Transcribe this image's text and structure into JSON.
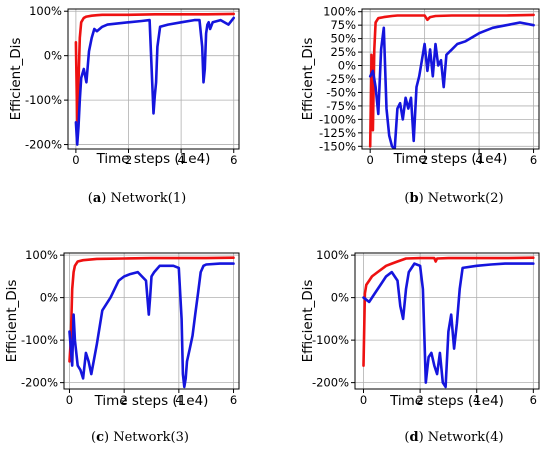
{
  "colors": {
    "red_series": "#ee1111",
    "blue_series": "#1515dd",
    "grid": "#b0b0b0"
  },
  "chart_data": [
    {
      "type": "line",
      "caption": {
        "letter": "a",
        "text": "Network(1)"
      },
      "xlabel": "Time steps (1e4)",
      "ylabel": "Efficient_Dis",
      "xlim": [
        -0.3,
        6.2
      ],
      "ylim": [
        -210,
        105
      ],
      "xticks": [
        0,
        2,
        4,
        6
      ],
      "yticks": [
        100,
        0,
        -100,
        -200
      ],
      "yticklabels": [
        "100%",
        "0%",
        "-100%",
        "-200%"
      ],
      "grid": true,
      "series": [
        {
          "color": "red",
          "x": [
            0,
            0.05,
            0.1,
            0.15,
            0.2,
            0.3,
            0.4,
            0.6,
            0.8,
            1,
            2,
            3,
            4,
            5,
            6
          ],
          "y": [
            30,
            -150,
            -60,
            40,
            75,
            85,
            88,
            90,
            91,
            92,
            92,
            93,
            93,
            93,
            94
          ]
        },
        {
          "color": "blue",
          "x": [
            0,
            0.05,
            0.1,
            0.15,
            0.2,
            0.3,
            0.4,
            0.5,
            0.6,
            0.7,
            0.8,
            1,
            1.2,
            1.5,
            2,
            2.5,
            2.8,
            2.9,
            2.95,
            3.0,
            3.05,
            3.1,
            3.2,
            3.5,
            4,
            4.5,
            4.7,
            4.8,
            4.85,
            4.9,
            4.95,
            5.0,
            5.05,
            5.1,
            5.2,
            5.5,
            5.8,
            6.0
          ],
          "y": [
            -150,
            -200,
            -160,
            -100,
            -50,
            -30,
            -60,
            10,
            40,
            60,
            55,
            65,
            70,
            72,
            75,
            78,
            80,
            -60,
            -130,
            -90,
            -60,
            20,
            65,
            70,
            75,
            80,
            80,
            20,
            -60,
            -30,
            50,
            70,
            75,
            60,
            75,
            80,
            70,
            85
          ]
        }
      ]
    },
    {
      "type": "line",
      "caption": {
        "letter": "b",
        "text": "Network(2)"
      },
      "xlabel": "Time steps (1e4)",
      "ylabel": "Efficient_Dis",
      "xlim": [
        -0.3,
        6.2
      ],
      "ylim": [
        -155,
        105
      ],
      "xticks": [
        0,
        2,
        4,
        6
      ],
      "yticks": [
        100,
        75,
        50,
        25,
        0,
        -25,
        -50,
        -75,
        -100,
        -125,
        -150
      ],
      "yticklabels": [
        "100%",
        "75%",
        "50%",
        "25%",
        "0%",
        "-25%",
        "-50%",
        "-75%",
        "-100%",
        "-125%",
        "-150%"
      ],
      "grid": true,
      "series": [
        {
          "color": "red",
          "x": [
            0,
            0.05,
            0.1,
            0.15,
            0.2,
            0.3,
            0.5,
            0.8,
            1,
            1.5,
            2,
            2.1,
            2.2,
            2.4,
            3,
            4,
            5,
            6
          ],
          "y": [
            -150,
            20,
            -120,
            30,
            80,
            88,
            90,
            92,
            93,
            93,
            93,
            85,
            90,
            92,
            93,
            93,
            93,
            94
          ]
        },
        {
          "color": "blue",
          "x": [
            0,
            0.1,
            0.2,
            0.3,
            0.4,
            0.5,
            0.6,
            0.7,
            0.8,
            0.9,
            1.0,
            1.1,
            1.2,
            1.3,
            1.4,
            1.5,
            1.6,
            1.7,
            1.8,
            1.9,
            2.0,
            2.1,
            2.2,
            2.3,
            2.4,
            2.5,
            2.6,
            2.7,
            2.8,
            3.0,
            3.2,
            3.5,
            4,
            4.5,
            5,
            5.5,
            6
          ],
          "y": [
            -20,
            -10,
            -40,
            -90,
            30,
            70,
            -80,
            -130,
            -150,
            -155,
            -80,
            -70,
            -100,
            -60,
            -80,
            -60,
            -140,
            -40,
            -20,
            10,
            40,
            -10,
            30,
            -20,
            40,
            0,
            10,
            -40,
            20,
            30,
            40,
            45,
            60,
            70,
            75,
            80,
            75
          ]
        }
      ]
    },
    {
      "type": "line",
      "caption": {
        "letter": "c",
        "text": "Network(3)"
      },
      "xlabel": "Time steps (1e4)",
      "ylabel": "Efficient_Dis",
      "xlim": [
        -0.2,
        6.2
      ],
      "ylim": [
        -215,
        105
      ],
      "xticks": [
        0,
        2,
        4,
        6
      ],
      "yticks": [
        100,
        0,
        -100,
        -200
      ],
      "yticklabels": [
        "100%",
        "0%",
        "-100%",
        "-200%"
      ],
      "grid": true,
      "series": [
        {
          "color": "red",
          "x": [
            0,
            0.05,
            0.1,
            0.15,
            0.2,
            0.3,
            0.5,
            0.8,
            1,
            2,
            3,
            4,
            5,
            6
          ],
          "y": [
            -150,
            -100,
            20,
            60,
            75,
            85,
            88,
            90,
            91,
            92,
            93,
            93,
            93,
            94
          ]
        },
        {
          "color": "blue",
          "x": [
            0,
            0.1,
            0.15,
            0.2,
            0.3,
            0.4,
            0.5,
            0.6,
            0.7,
            0.8,
            1.0,
            1.2,
            1.5,
            1.8,
            2.0,
            2.2,
            2.5,
            2.8,
            2.9,
            2.95,
            3.0,
            3.1,
            3.3,
            3.5,
            3.8,
            4.0,
            4.1,
            4.15,
            4.2,
            4.25,
            4.3,
            4.4,
            4.5,
            4.6,
            4.7,
            4.8,
            4.9,
            5.0,
            5.5,
            6.0
          ],
          "y": [
            -80,
            -160,
            -40,
            -100,
            -160,
            -170,
            -190,
            -130,
            -150,
            -180,
            -110,
            -30,
            0,
            40,
            50,
            55,
            60,
            40,
            -40,
            0,
            50,
            60,
            75,
            75,
            75,
            70,
            -50,
            -180,
            -210,
            -190,
            -150,
            -120,
            -90,
            -40,
            10,
            60,
            75,
            78,
            80,
            80
          ]
        }
      ]
    },
    {
      "type": "line",
      "caption": {
        "letter": "d",
        "text": "Network(4)"
      },
      "xlabel": "Time steps (1e4)",
      "ylabel": "Efficient_Dis",
      "xlim": [
        -0.3,
        6.2
      ],
      "ylim": [
        -215,
        105
      ],
      "xticks": [
        0,
        2,
        4,
        6
      ],
      "yticks": [
        100,
        0,
        -100,
        -200
      ],
      "yticklabels": [
        "100%",
        "0%",
        "-100%",
        "-200%"
      ],
      "grid": true,
      "series": [
        {
          "color": "red",
          "x": [
            0,
            0.05,
            0.1,
            0.2,
            0.3,
            0.5,
            0.8,
            1.0,
            1.2,
            1.5,
            2,
            2.5,
            2.55,
            2.6,
            3,
            4,
            5,
            6
          ],
          "y": [
            -160,
            10,
            30,
            40,
            50,
            60,
            75,
            80,
            85,
            92,
            93,
            93,
            85,
            92,
            93,
            93,
            93,
            94
          ]
        },
        {
          "color": "blue",
          "x": [
            0,
            0.2,
            0.4,
            0.6,
            0.8,
            1.0,
            1.2,
            1.3,
            1.4,
            1.5,
            1.6,
            1.8,
            2.0,
            2.1,
            2.2,
            2.3,
            2.4,
            2.5,
            2.6,
            2.7,
            2.8,
            2.9,
            3.0,
            3.1,
            3.2,
            3.3,
            3.4,
            3.5,
            4,
            4.5,
            5,
            5.5,
            6
          ],
          "y": [
            0,
            -10,
            10,
            30,
            50,
            60,
            40,
            -20,
            -50,
            20,
            60,
            80,
            75,
            20,
            -200,
            -140,
            -130,
            -160,
            -180,
            -130,
            -200,
            -210,
            -80,
            -40,
            -120,
            -60,
            20,
            70,
            75,
            78,
            80,
            80,
            80
          ]
        }
      ]
    }
  ]
}
